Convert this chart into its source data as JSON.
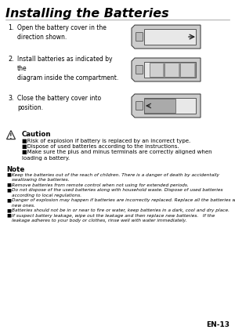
{
  "title": "Installing the Batteries",
  "bg_color": "#ffffff",
  "steps": [
    {
      "num": "1.",
      "text": "Open the battery cover in the\ndirection shown."
    },
    {
      "num": "2.",
      "text": "Install batteries as indicated by\nthe\ndiagram inside the compartment."
    },
    {
      "num": "3.",
      "text": "Close the battery cover into\nposition."
    }
  ],
  "caution_title": "Caution",
  "caution_lines": [
    "Risk of explosion if battery is replaced by an incorrect type.",
    "Dispose of used batteries according to the instructions.",
    "Make sure the plus and minus terminals are correctly aligned when\nloading a battery."
  ],
  "note_title": "Note",
  "note_lines": [
    "Keep the batteries out of the reach of children. There is a danger of death by accidentally\nswallowing the batteries.",
    "Remove batteries from remote control when not using for extended periods.",
    "Do not dispose of the used batteries along with household waste. Dispose of used batteries\naccording to local regulations.",
    "Danger of explosion may happen if batteries are incorrectly replaced. Replace all the batteries with\nnew ones.",
    "Batteries should not be in or near to fire or water, keep batteries in a dark, cool and dry place.",
    "If suspect battery leakage, wipe out the leakage and then replace new batteries.   If the\nleakage adheres to your body or clothes, rinse well with water immediately."
  ],
  "footer": "EN-13"
}
